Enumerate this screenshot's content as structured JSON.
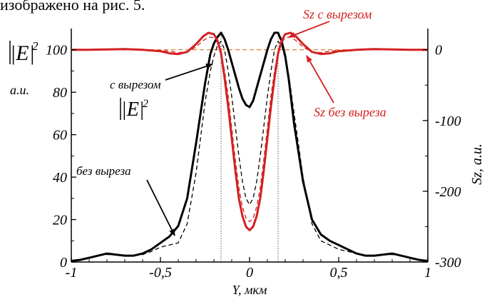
{
  "header_snippet": "изображено на рис. 5.",
  "colors": {
    "black": "#000000",
    "red": "#d42020",
    "grid": "#555555"
  },
  "chart_data": {
    "type": "line",
    "xlabel": "Y, мкм",
    "ylabel_left_main": "|E|",
    "ylabel_left_sup": "2",
    "ylabel_left_unit": "a.u.",
    "ylabel_right": "Sz, a.u.",
    "xlim": [
      -1,
      1
    ],
    "ylim_left": [
      0,
      110
    ],
    "ylim_right": [
      -300,
      30
    ],
    "x_ticks": [
      {
        "v": -1,
        "label": "-1"
      },
      {
        "v": -0.5,
        "label": "-0,5"
      },
      {
        "v": 0,
        "label": "0"
      },
      {
        "v": 0.5,
        "label": "0,5"
      },
      {
        "v": 1,
        "label": "1"
      }
    ],
    "y_ticks_left": [
      {
        "v": 0,
        "label": "0"
      },
      {
        "v": 20,
        "label": "20"
      },
      {
        "v": 40,
        "label": "40"
      },
      {
        "v": 60,
        "label": "60"
      },
      {
        "v": 80,
        "label": "80"
      },
      {
        "v": 100,
        "label": "100"
      }
    ],
    "y_ticks_right": [
      {
        "v": 0,
        "label": "0"
      },
      {
        "v": -100,
        "label": "-100"
      },
      {
        "v": -200,
        "label": "-200"
      },
      {
        "v": -300,
        "label": "-300"
      }
    ],
    "vlines": [
      -0.16,
      0.16
    ],
    "annotations": [
      {
        "text": "с вырезом",
        "color": "black"
      },
      {
        "text": "|E|",
        "sup": "2",
        "color": "black"
      },
      {
        "text": "без выреза",
        "color": "black"
      },
      {
        "text": "Sz с вырезом",
        "color": "red"
      },
      {
        "text": "Sz без выреза",
        "color": "red"
      }
    ],
    "series": [
      {
        "label": "с вырезом",
        "axis": "left",
        "color": "black",
        "style": "solid",
        "width": 3,
        "x": [
          -1,
          -0.95,
          -0.9,
          -0.85,
          -0.8,
          -0.75,
          -0.7,
          -0.65,
          -0.6,
          -0.55,
          -0.5,
          -0.45,
          -0.4,
          -0.35,
          -0.3,
          -0.25,
          -0.22,
          -0.2,
          -0.18,
          -0.16,
          -0.14,
          -0.12,
          -0.1,
          -0.08,
          -0.06,
          -0.04,
          -0.02,
          0,
          0.02,
          0.04,
          0.06,
          0.08,
          0.1,
          0.12,
          0.14,
          0.16,
          0.18,
          0.2,
          0.22,
          0.25,
          0.3,
          0.35,
          0.4,
          0.45,
          0.5,
          0.55,
          0.6,
          0.65,
          0.7,
          0.75,
          0.8,
          0.85,
          0.9,
          0.95,
          1
        ],
        "y": [
          0.5,
          1,
          2,
          3,
          4,
          3.5,
          3,
          3,
          4,
          6,
          9,
          12,
          17,
          30,
          56,
          84,
          98,
          103,
          106,
          108,
          105,
          100,
          94,
          88,
          82,
          77,
          74,
          73,
          76,
          82,
          88,
          94,
          100,
          105,
          108,
          108,
          104,
          97,
          86,
          65,
          38,
          20,
          13,
          10,
          8,
          6,
          4,
          3,
          3,
          3.5,
          4,
          3,
          2,
          1,
          0.5
        ]
      },
      {
        "label": "без выреза",
        "axis": "left",
        "color": "black",
        "style": "dashed",
        "width": 1.3,
        "x": [
          -1,
          -0.95,
          -0.9,
          -0.85,
          -0.8,
          -0.75,
          -0.7,
          -0.65,
          -0.6,
          -0.55,
          -0.5,
          -0.45,
          -0.4,
          -0.35,
          -0.3,
          -0.25,
          -0.22,
          -0.2,
          -0.18,
          -0.16,
          -0.14,
          -0.12,
          -0.1,
          -0.08,
          -0.06,
          -0.04,
          -0.02,
          0,
          0.02,
          0.04,
          0.06,
          0.08,
          0.1,
          0.12,
          0.14,
          0.16,
          0.18,
          0.2,
          0.22,
          0.25,
          0.3,
          0.35,
          0.4,
          0.45,
          0.5,
          0.55,
          0.6,
          0.65,
          0.7,
          0.75,
          0.8,
          0.85,
          0.9,
          0.95,
          1
        ],
        "y": [
          0.5,
          1,
          2,
          3,
          3.5,
          3.5,
          3,
          3,
          3.5,
          5,
          7,
          8,
          9,
          18,
          42,
          75,
          90,
          97,
          102,
          104,
          100,
          90,
          78,
          64,
          50,
          38,
          30,
          27,
          30,
          38,
          50,
          64,
          78,
          90,
          100,
          104,
          102,
          96,
          88,
          70,
          40,
          18,
          10,
          8,
          6,
          5,
          4,
          3,
          3,
          3.5,
          3.5,
          3,
          2,
          1,
          0.5
        ]
      },
      {
        "label": "Sz с вырезом",
        "axis": "right",
        "color": "red",
        "style": "solid",
        "width": 3,
        "x": [
          -1,
          -0.9,
          -0.8,
          -0.7,
          -0.6,
          -0.5,
          -0.45,
          -0.4,
          -0.35,
          -0.3,
          -0.26,
          -0.23,
          -0.2,
          -0.18,
          -0.16,
          -0.14,
          -0.12,
          -0.1,
          -0.08,
          -0.06,
          -0.04,
          -0.02,
          0,
          0.02,
          0.04,
          0.06,
          0.08,
          0.1,
          0.12,
          0.14,
          0.16,
          0.18,
          0.2,
          0.23,
          0.26,
          0.3,
          0.35,
          0.4,
          0.45,
          0.5,
          0.6,
          0.7,
          0.8,
          0.9,
          1
        ],
        "y": [
          0,
          0,
          0.5,
          1,
          0,
          -2,
          -5,
          -6,
          -3,
          8,
          19,
          24,
          22,
          13,
          -5,
          -40,
          -80,
          -125,
          -170,
          -210,
          -235,
          -250,
          -255,
          -250,
          -235,
          -210,
          -170,
          -125,
          -80,
          -40,
          -5,
          13,
          22,
          24,
          19,
          8,
          -3,
          -6,
          -5,
          -2,
          0,
          1,
          0.5,
          0,
          0
        ]
      },
      {
        "label": "Sz без выреза",
        "axis": "right",
        "color": "red",
        "style": "dashed",
        "width": 1.3,
        "x": [
          -1,
          -0.9,
          -0.8,
          -0.7,
          -0.6,
          -0.5,
          -0.45,
          -0.4,
          -0.35,
          -0.3,
          -0.26,
          -0.23,
          -0.2,
          -0.18,
          -0.16,
          -0.14,
          -0.12,
          -0.1,
          -0.08,
          -0.06,
          -0.04,
          -0.02,
          0,
          0.02,
          0.04,
          0.06,
          0.08,
          0.1,
          0.12,
          0.14,
          0.16,
          0.18,
          0.2,
          0.23,
          0.26,
          0.3,
          0.35,
          0.4,
          0.45,
          0.5,
          0.6,
          0.7,
          0.8,
          0.9,
          1
        ],
        "y": [
          0,
          0,
          0,
          0,
          0,
          -1,
          -2,
          -4,
          -3,
          4,
          13,
          18,
          17,
          10,
          -3,
          -30,
          -65,
          -110,
          -155,
          -195,
          -222,
          -238,
          -243,
          -238,
          -222,
          -195,
          -155,
          -110,
          -65,
          -30,
          -3,
          10,
          17,
          18,
          13,
          4,
          -3,
          -4,
          -2,
          -1,
          0,
          0,
          0,
          0,
          0
        ]
      },
      {
        "label": "Sz = 0",
        "axis": "right",
        "color": "orange",
        "style": "dashed",
        "width": 1.2,
        "x": [
          -1,
          1
        ],
        "y": [
          0,
          0
        ]
      }
    ]
  }
}
